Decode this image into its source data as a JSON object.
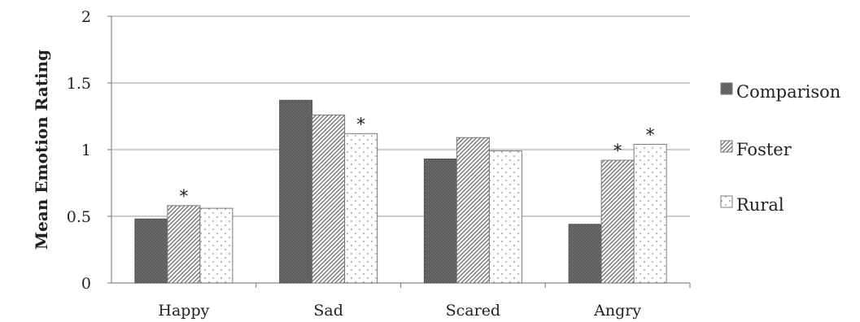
{
  "chart_data": {
    "type": "bar",
    "ylabel": "Mean Emotion Rating",
    "xlabel": "",
    "categories": [
      "Happy",
      "Sad",
      "Scared",
      "Angry"
    ],
    "ylim": [
      0,
      2
    ],
    "yticks": [
      0,
      0.5,
      1,
      1.5,
      2
    ],
    "ytick_labels": [
      "0",
      "0.5",
      "1",
      "1.5",
      "2"
    ],
    "grid": true,
    "legend_position": "right",
    "series": [
      {
        "name": "Comparison",
        "values": [
          0.48,
          1.37,
          0.93,
          0.44
        ],
        "pattern": "solid-dark",
        "significant": [
          false,
          false,
          false,
          false
        ]
      },
      {
        "name": "Foster",
        "values": [
          0.58,
          1.26,
          1.09,
          0.92
        ],
        "pattern": "diagonal-hatch",
        "significant": [
          true,
          false,
          false,
          true
        ]
      },
      {
        "name": "Rural",
        "values": [
          0.56,
          1.12,
          0.99,
          1.04
        ],
        "pattern": "dots",
        "significant": [
          false,
          true,
          false,
          true
        ]
      }
    ],
    "significance_marker": "*",
    "colors": {
      "comparison": "#666666",
      "axis": "#888888",
      "grid": "#999999"
    }
  }
}
